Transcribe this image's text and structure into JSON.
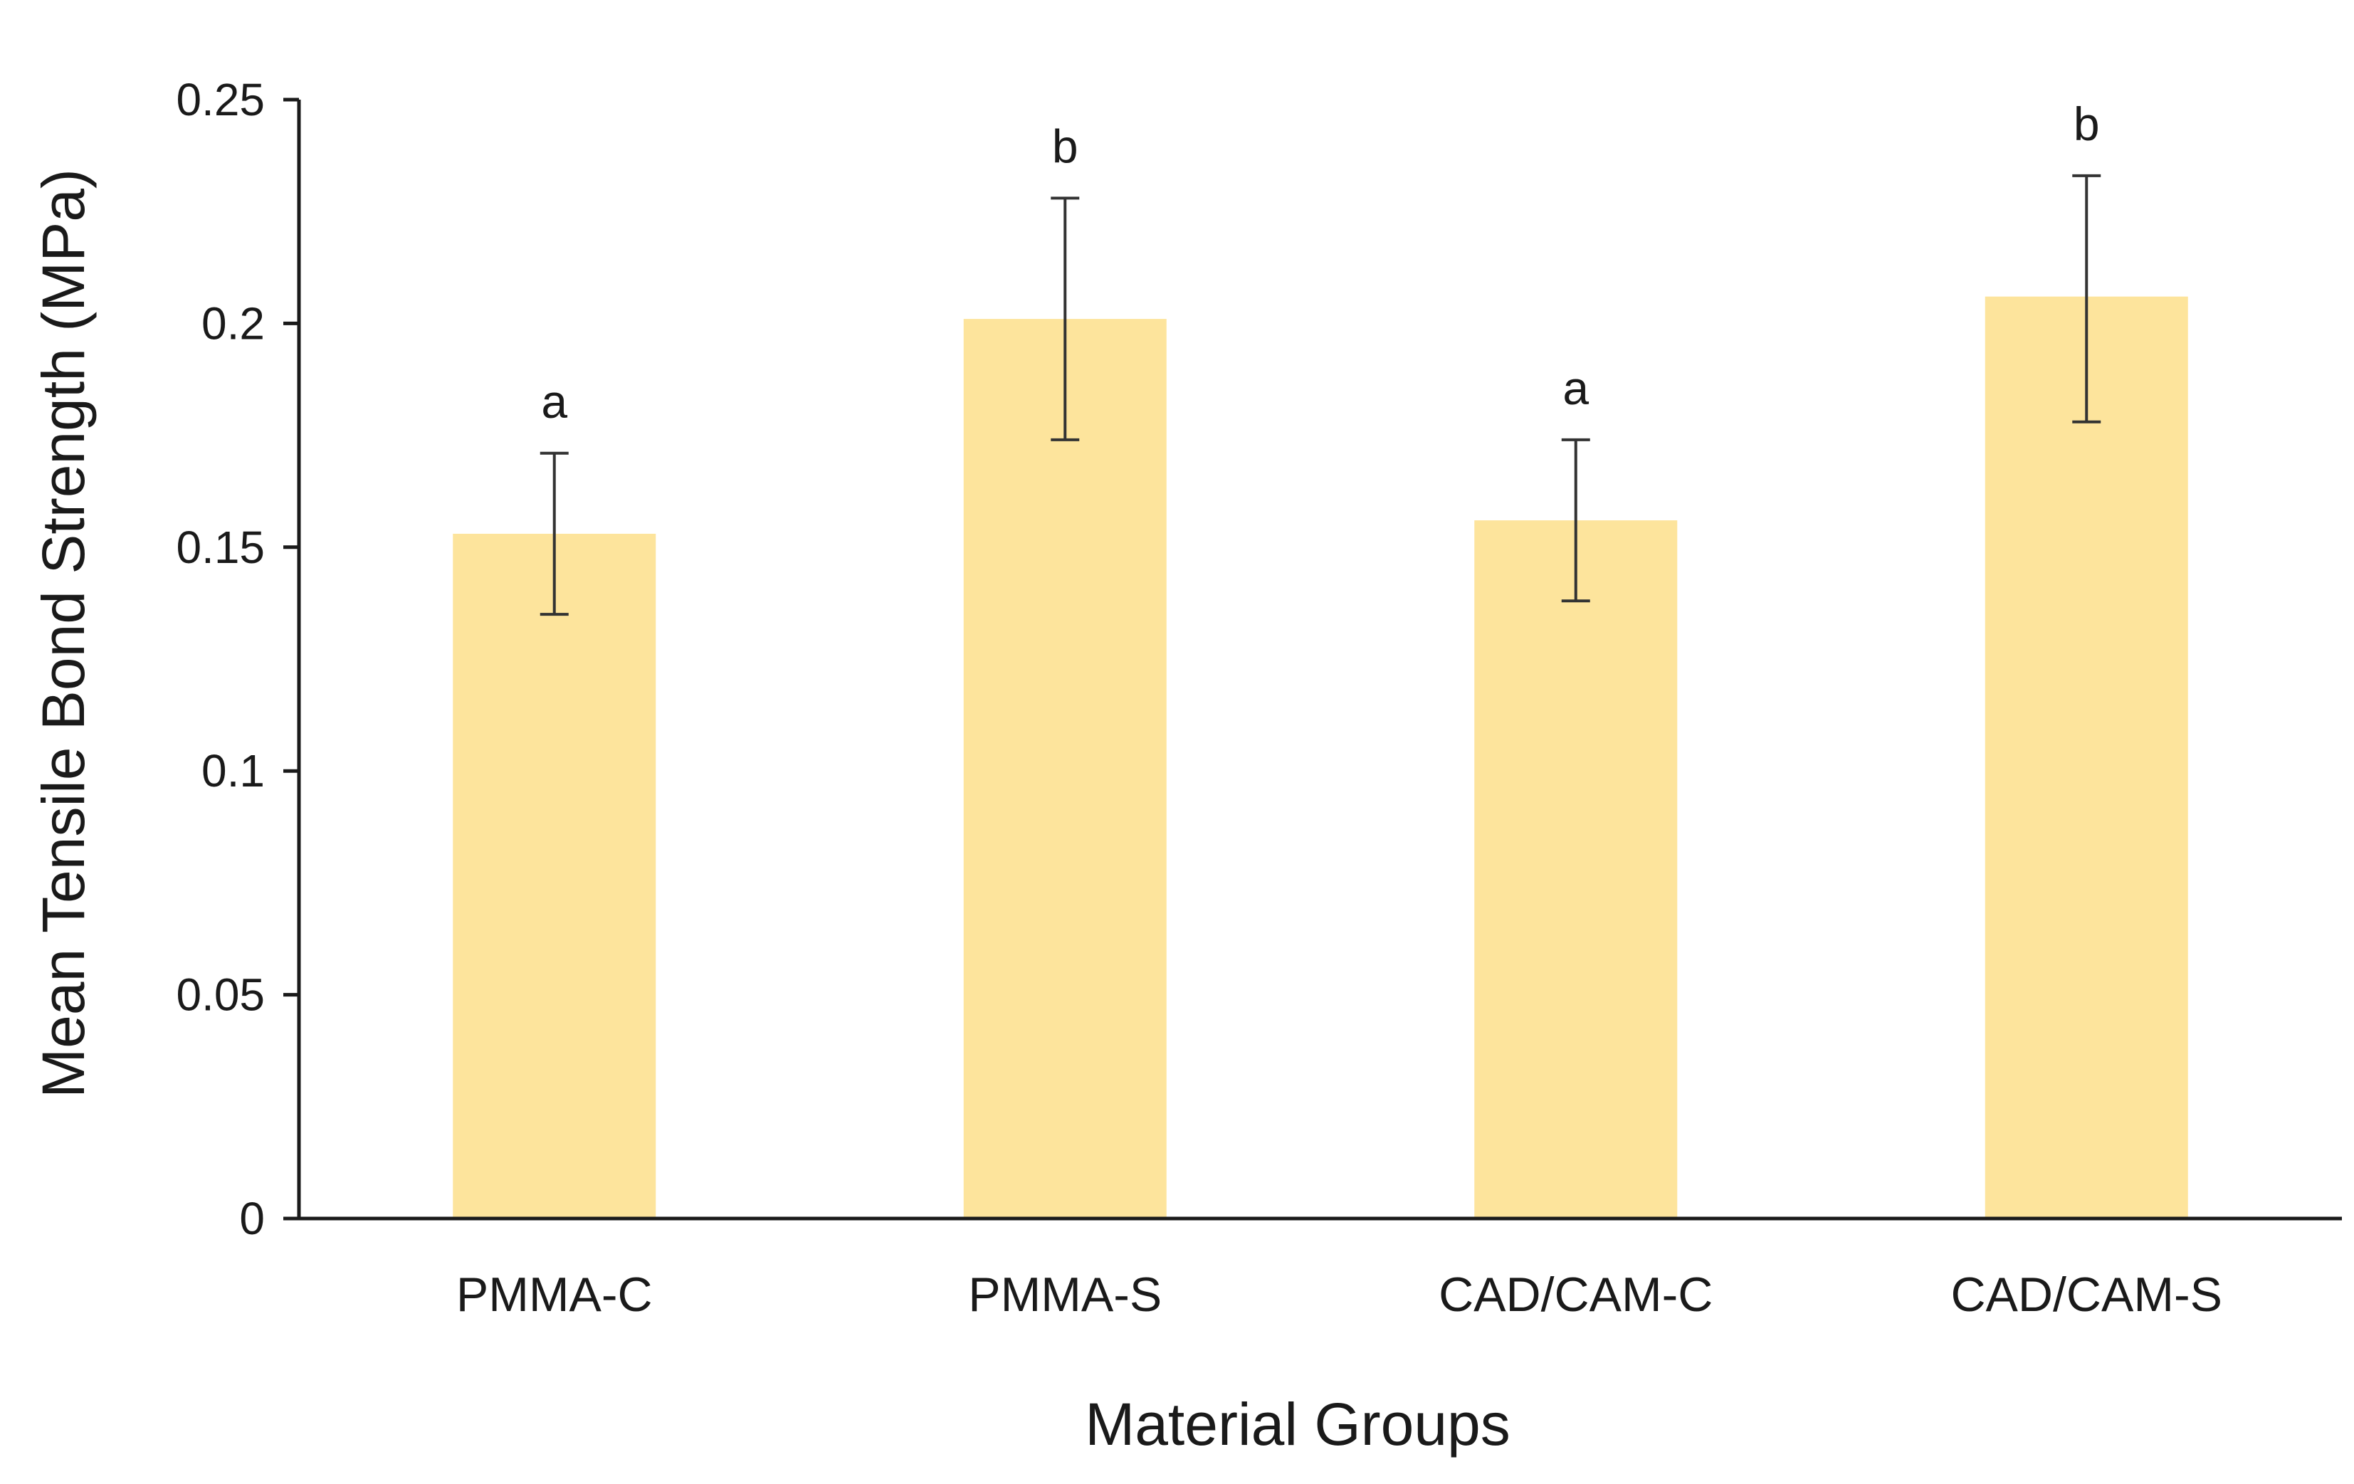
{
  "chart_data": {
    "type": "bar",
    "title": "",
    "xlabel": "Material Groups",
    "ylabel": "Mean  Tensile Bond Strength (MPa)",
    "categories": [
      "PMMA-C",
      "PMMA-S",
      "CAD/CAM-C",
      "CAD/CAM-S"
    ],
    "values": [
      0.153,
      0.201,
      0.156,
      0.206
    ],
    "error_low": [
      0.135,
      0.174,
      0.138,
      0.178
    ],
    "error_high": [
      0.171,
      0.228,
      0.174,
      0.233
    ],
    "significance_labels": [
      "a",
      "b",
      "a",
      "b"
    ],
    "ylim": [
      0,
      0.25
    ],
    "yticks": [
      0,
      0.05,
      0.1,
      0.15,
      0.2,
      0.25
    ],
    "ytick_labels": [
      "0",
      "0.05",
      "0.1",
      "0.15",
      "0.2",
      "0.25"
    ],
    "grid": false,
    "bar_color": "#fde49c",
    "axis_color": "#1a1a1a",
    "error_bar_color": "#333333"
  }
}
